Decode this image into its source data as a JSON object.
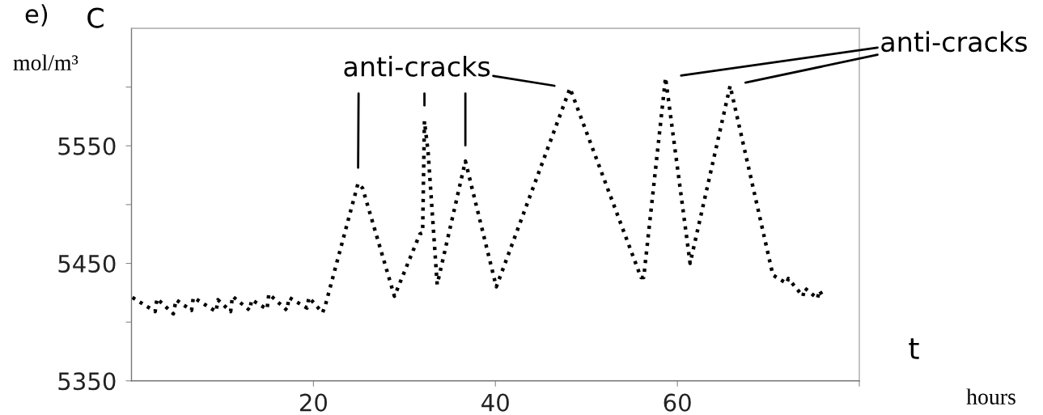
{
  "chart_data": {
    "type": "line",
    "title": "e)",
    "ylabel": "C",
    "xlabel": "t",
    "x": [
      0.1,
      2.6,
      2.8,
      4.6,
      4.9,
      6.6,
      6.8,
      9.3,
      9.5,
      10.9,
      11.1,
      13.0,
      13.2,
      14.9,
      15.1,
      17.1,
      17.3,
      19.3,
      19.5,
      21.0,
      21.3,
      24.9,
      25.4,
      28.9,
      31.7,
      32.0,
      32.2,
      32.6,
      33.6,
      36.7,
      40.1,
      48.2,
      56.0,
      56.3,
      58.7,
      61.4,
      65.8,
      70.5,
      72.0,
      72.2,
      73.8,
      74.0,
      75.4,
      75.6,
      76.0
    ],
    "series": [
      {
        "color": "#000000",
        "values": [
          5421,
          5409,
          5420,
          5407,
          5419,
          5410,
          5421,
          5409,
          5419,
          5409,
          5422,
          5410,
          5419,
          5411,
          5424,
          5410,
          5421,
          5412,
          5421,
          5408,
          5414,
          5518,
          5514,
          5422,
          5475,
          5476,
          5571,
          5545,
          5432,
          5537,
          5430,
          5599,
          5438,
          5438,
          5608,
          5450,
          5601,
          5440,
          5433,
          5437,
          5422,
          5429,
          5420,
          5427,
          5422
        ]
      }
    ],
    "line_style": "dotted",
    "xlim": [
      0,
      80
    ],
    "xticks": [
      20,
      40,
      60,
      {
        "value": 80,
        "label": null
      }
    ],
    "ylim": [
      5350,
      5650
    ],
    "yticks": [
      5350,
      {
        "value": 5400,
        "label": null
      },
      5450,
      {
        "value": 5500,
        "label": null
      },
      5550,
      {
        "value": 5600,
        "label": null
      }
    ],
    "grid": false,
    "annotations": [
      "mol/m³",
      "hours",
      "anti-cracks",
      "anti-cracks"
    ]
  }
}
